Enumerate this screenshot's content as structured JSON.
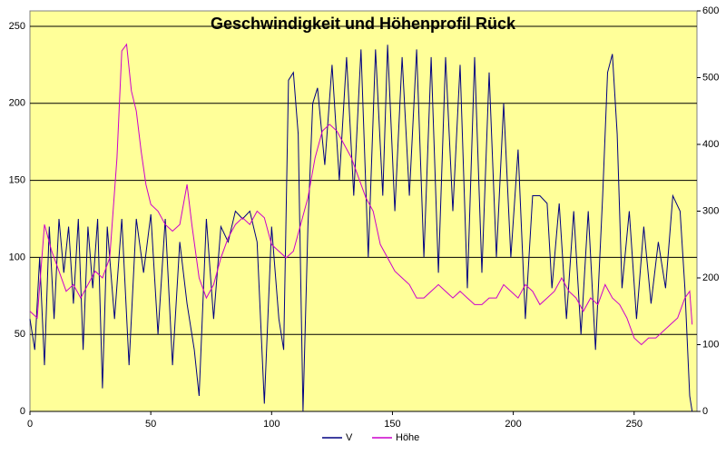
{
  "chart_data": {
    "type": "line",
    "title": "Geschwindigkeit und Höhenprofil Rück",
    "xlim": [
      0,
      276
    ],
    "xticks": [
      0,
      50,
      100,
      150,
      200,
      250
    ],
    "ylim": [
      0,
      260
    ],
    "yticks": [
      0,
      50,
      100,
      150,
      200,
      250
    ],
    "y2lim": [
      0,
      600
    ],
    "y2ticks": [
      0,
      100,
      200,
      300,
      400,
      500,
      600
    ],
    "grid": true,
    "background": "#ffff99",
    "legend": "bottom",
    "series": [
      {
        "name": "V",
        "color": "#000080",
        "x": [
          0,
          2,
          4,
          6,
          8,
          10,
          12,
          14,
          16,
          18,
          20,
          22,
          24,
          26,
          28,
          30,
          32,
          35,
          38,
          41,
          44,
          47,
          50,
          53,
          56,
          59,
          62,
          65,
          68,
          70,
          73,
          76,
          79,
          82,
          85,
          88,
          91,
          94,
          97,
          100,
          103,
          105,
          107,
          109,
          111,
          113,
          115,
          117,
          119,
          122,
          125,
          128,
          131,
          134,
          137,
          140,
          143,
          146,
          148,
          151,
          154,
          157,
          160,
          163,
          166,
          169,
          172,
          175,
          178,
          181,
          184,
          187,
          190,
          193,
          196,
          199,
          202,
          205,
          208,
          211,
          214,
          216,
          219,
          222,
          225,
          228,
          231,
          234,
          237,
          239,
          241,
          243,
          245,
          248,
          251,
          254,
          257,
          260,
          263,
          266,
          269,
          271,
          273,
          274
        ],
        "values": [
          60,
          40,
          100,
          30,
          120,
          60,
          125,
          90,
          120,
          70,
          125,
          40,
          120,
          80,
          125,
          15,
          120,
          60,
          125,
          30,
          125,
          90,
          128,
          50,
          125,
          30,
          110,
          70,
          40,
          10,
          125,
          60,
          120,
          110,
          130,
          125,
          130,
          110,
          5,
          120,
          60,
          40,
          215,
          220,
          180,
          0,
          120,
          200,
          210,
          160,
          225,
          150,
          230,
          140,
          235,
          100,
          235,
          140,
          238,
          130,
          230,
          140,
          235,
          100,
          230,
          90,
          230,
          130,
          225,
          80,
          230,
          90,
          220,
          100,
          200,
          100,
          170,
          60,
          140,
          140,
          135,
          80,
          135,
          60,
          130,
          50,
          130,
          40,
          140,
          220,
          232,
          180,
          80,
          130,
          60,
          120,
          70,
          110,
          80,
          140,
          130,
          80,
          10,
          0
        ]
      },
      {
        "name": "Höhe",
        "color": "#cc00cc",
        "axis": "y2",
        "x": [
          0,
          3,
          6,
          9,
          12,
          15,
          18,
          21,
          24,
          27,
          30,
          33,
          36,
          38,
          40,
          42,
          44,
          46,
          48,
          50,
          53,
          56,
          59,
          62,
          65,
          67,
          70,
          73,
          76,
          79,
          82,
          85,
          88,
          91,
          94,
          97,
          100,
          103,
          106,
          109,
          112,
          115,
          118,
          121,
          124,
          127,
          130,
          133,
          136,
          139,
          142,
          145,
          148,
          151,
          154,
          157,
          160,
          163,
          166,
          169,
          172,
          175,
          178,
          181,
          184,
          187,
          190,
          193,
          196,
          199,
          202,
          205,
          208,
          211,
          214,
          217,
          220,
          223,
          226,
          229,
          232,
          235,
          238,
          241,
          244,
          247,
          250,
          253,
          256,
          259,
          262,
          265,
          268,
          271,
          273,
          274
        ],
        "values": [
          150,
          140,
          280,
          240,
          210,
          180,
          190,
          170,
          190,
          210,
          200,
          230,
          380,
          540,
          550,
          480,
          450,
          390,
          340,
          310,
          300,
          280,
          270,
          280,
          340,
          280,
          200,
          170,
          190,
          230,
          260,
          280,
          290,
          280,
          300,
          290,
          250,
          240,
          230,
          240,
          280,
          320,
          380,
          420,
          430,
          420,
          400,
          380,
          350,
          320,
          300,
          250,
          230,
          210,
          200,
          190,
          170,
          170,
          180,
          190,
          180,
          170,
          180,
          170,
          160,
          160,
          170,
          170,
          190,
          180,
          170,
          190,
          180,
          160,
          170,
          180,
          200,
          180,
          170,
          150,
          170,
          160,
          190,
          170,
          160,
          140,
          110,
          100,
          110,
          110,
          120,
          130,
          140,
          170,
          180,
          130
        ]
      }
    ]
  }
}
